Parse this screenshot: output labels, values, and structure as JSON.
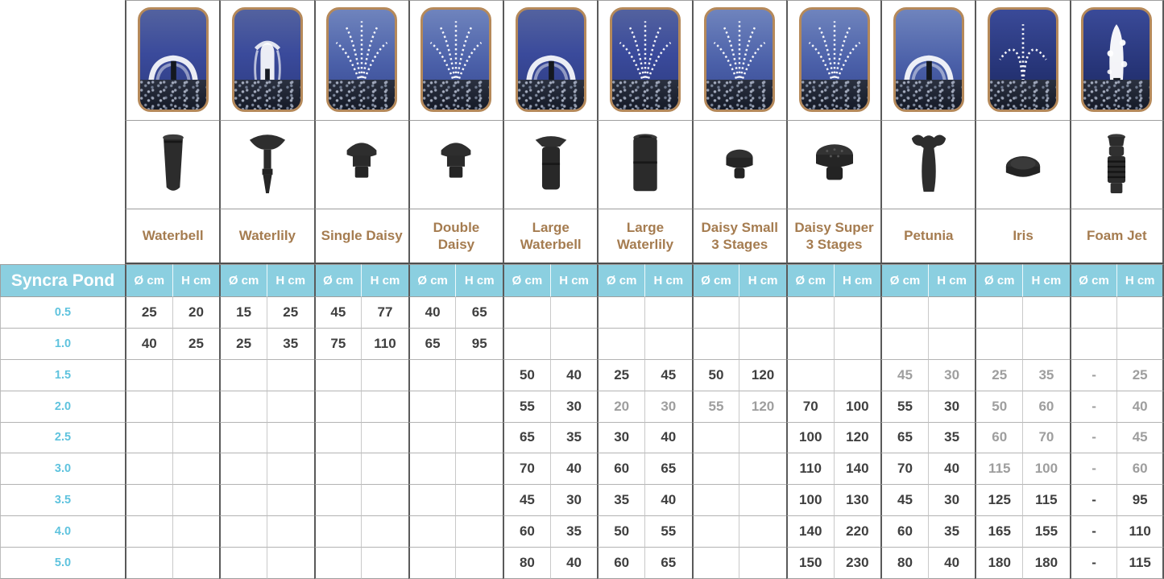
{
  "table": {
    "pump": {
      "label": "Syncra Pond"
    },
    "columns": {
      "diameter": "Ø cm",
      "height": "H cm"
    },
    "colors": {
      "header_bg": "#8bcfe0",
      "header_text": "#ffffff",
      "model_text": "#5fc3de",
      "nozzle_name_text": "#a57c50",
      "value_text": "#3f3f3f",
      "value_muted_text": "#9e9e9e",
      "photo_border": "#b5895a"
    },
    "nozzles": [
      {
        "id": "waterbell",
        "name": "Waterbell",
        "spray": "bell",
        "tone": "mid",
        "icon": "taper"
      },
      {
        "id": "waterlily",
        "name": "Waterlily",
        "spray": "column",
        "tone": "mid",
        "icon": "trumpet"
      },
      {
        "id": "single-daisy",
        "name": "Single Daisy",
        "spray": "fan",
        "tone": "light",
        "icon": "mushroom"
      },
      {
        "id": "double-daisy",
        "name": "Double Daisy",
        "spray": "fan",
        "tone": "light",
        "icon": "mushroom"
      },
      {
        "id": "large-waterbell",
        "name": "Large Waterbell",
        "spray": "bell",
        "tone": "mid",
        "icon": "capcyl"
      },
      {
        "id": "large-waterlily",
        "name": "Large Waterlily",
        "spray": "fan",
        "tone": "mid",
        "icon": "cyl"
      },
      {
        "id": "daisy-small-3-stages",
        "name": "Daisy Small 3 Stages",
        "spray": "fan",
        "tone": "light",
        "icon": "knobsmall"
      },
      {
        "id": "daisy-super-3-stages",
        "name": "Daisy Super 3 Stages",
        "spray": "fan",
        "tone": "light",
        "icon": "knoblarge"
      },
      {
        "id": "petunia",
        "name": "Petunia",
        "spray": "bell",
        "tone": "light",
        "icon": "flower"
      },
      {
        "id": "iris",
        "name": "Iris",
        "spray": "jets",
        "tone": "dark",
        "icon": "disc"
      },
      {
        "id": "foam-jet",
        "name": "Foam Jet",
        "spray": "foam",
        "tone": "dark",
        "icon": "ribbed"
      }
    ],
    "rows": [
      {
        "model": "0.5",
        "values": [
          "25",
          "20",
          "15",
          "25",
          "45",
          "77",
          "40",
          "65",
          "",
          "",
          "",
          "",
          "",
          "",
          "",
          "",
          "",
          "",
          "",
          "",
          "",
          ""
        ],
        "muted": []
      },
      {
        "model": "1.0",
        "values": [
          "40",
          "25",
          "25",
          "35",
          "75",
          "110",
          "65",
          "95",
          "",
          "",
          "",
          "",
          "",
          "",
          "",
          "",
          "",
          "",
          "",
          "",
          "",
          ""
        ],
        "muted": []
      },
      {
        "model": "1.5",
        "values": [
          "",
          "",
          "",
          "",
          "",
          "",
          "",
          "",
          "50",
          "40",
          "25",
          "45",
          "50",
          "120",
          "",
          "",
          "45",
          "30",
          "25",
          "35",
          "-",
          "25"
        ],
        "muted": [
          16,
          17,
          18,
          19,
          20,
          21
        ]
      },
      {
        "model": "2.0",
        "values": [
          "",
          "",
          "",
          "",
          "",
          "",
          "",
          "",
          "55",
          "30",
          "20",
          "30",
          "55",
          "120",
          "70",
          "100",
          "55",
          "30",
          "50",
          "60",
          "-",
          "40"
        ],
        "muted": [
          10,
          11,
          12,
          13,
          18,
          19,
          20,
          21
        ]
      },
      {
        "model": "2.5",
        "values": [
          "",
          "",
          "",
          "",
          "",
          "",
          "",
          "",
          "65",
          "35",
          "30",
          "40",
          "",
          "",
          "100",
          "120",
          "65",
          "35",
          "60",
          "70",
          "-",
          "45"
        ],
        "muted": [
          18,
          19,
          20,
          21
        ]
      },
      {
        "model": "3.0",
        "values": [
          "",
          "",
          "",
          "",
          "",
          "",
          "",
          "",
          "70",
          "40",
          "60",
          "65",
          "",
          "",
          "110",
          "140",
          "70",
          "40",
          "115",
          "100",
          "-",
          "60"
        ],
        "muted": [
          18,
          19,
          20,
          21
        ]
      },
      {
        "model": "3.5",
        "values": [
          "",
          "",
          "",
          "",
          "",
          "",
          "",
          "",
          "45",
          "30",
          "35",
          "40",
          "",
          "",
          "100",
          "130",
          "45",
          "30",
          "125",
          "115",
          "-",
          "95"
        ],
        "muted": []
      },
      {
        "model": "4.0",
        "values": [
          "",
          "",
          "",
          "",
          "",
          "",
          "",
          "",
          "60",
          "35",
          "50",
          "55",
          "",
          "",
          "140",
          "220",
          "60",
          "35",
          "165",
          "155",
          "-",
          "110"
        ],
        "muted": []
      },
      {
        "model": "5.0",
        "values": [
          "",
          "",
          "",
          "",
          "",
          "",
          "",
          "",
          "80",
          "40",
          "60",
          "65",
          "",
          "",
          "150",
          "230",
          "80",
          "40",
          "180",
          "180",
          "-",
          "115"
        ],
        "muted": []
      }
    ]
  }
}
